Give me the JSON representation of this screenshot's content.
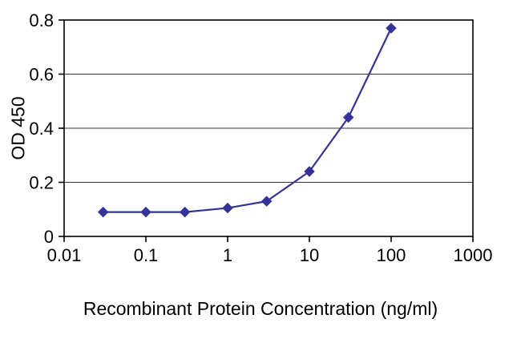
{
  "chart_data": {
    "type": "line",
    "x_scale": "log",
    "x": [
      0.03,
      0.1,
      0.3,
      1,
      3,
      10,
      30,
      100
    ],
    "y": [
      0.09,
      0.09,
      0.09,
      0.105,
      0.13,
      0.24,
      0.44,
      0.77
    ],
    "title": "",
    "xlabel": "Recombinant Protein Concentration (ng/ml)",
    "ylabel": "OD 450",
    "xlim": [
      0.01,
      1000
    ],
    "ylim": [
      0,
      0.8
    ],
    "x_tick_values": [
      0.01,
      0.1,
      1,
      10,
      100,
      1000
    ],
    "x_tick_labels": [
      "0.01",
      "0.1",
      "1",
      "10",
      "100",
      "1000"
    ],
    "y_tick_values": [
      0,
      0.2,
      0.4,
      0.6,
      0.8
    ],
    "y_tick_labels": [
      "0",
      "0.2",
      "0.4",
      "0.6",
      "0.8"
    ],
    "grid": "horizontal",
    "legend": "none",
    "marker": "diamond",
    "series_color": "#333399",
    "axis_color": "#000000",
    "grid_color": "#333333",
    "background_color": "#ffffff"
  }
}
